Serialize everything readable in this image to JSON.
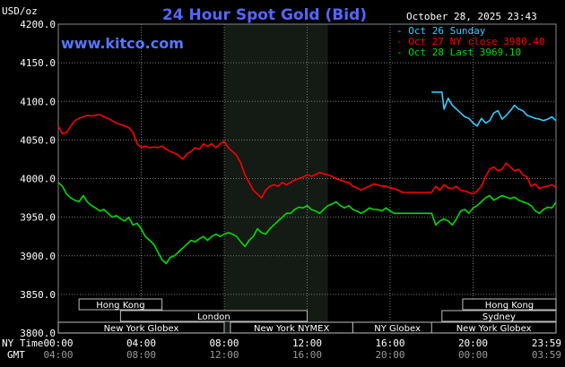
{
  "header": {
    "title": "24 Hour Spot Gold (Bid)",
    "unit": "USD/oz",
    "timestamp": "October 28, 2025 23:43",
    "site": "www.kitco.com"
  },
  "legend": [
    {
      "label": "Oct 26 Sunday",
      "color": "#33ccff"
    },
    {
      "label": "Oct 27 NY close 3980.40",
      "color": "#ff0000"
    },
    {
      "label": "Oct 28 Last 3969.10",
      "color": "#00dd00"
    }
  ],
  "axis_labels": {
    "row1_label": "NY Time",
    "row2_label": "GMT",
    "ny_ticks": [
      "00:00",
      "04:00",
      "08:00",
      "12:00",
      "16:00",
      "20:00",
      "23:59"
    ],
    "gmt_ticks": [
      "04:00",
      "08:00",
      "12:00",
      "16:00",
      "20:00",
      "00:00",
      "03:59"
    ]
  },
  "sessions": [
    {
      "label": "Hong Kong",
      "row": 0,
      "start": 1.0,
      "end": 5.0
    },
    {
      "label": "London",
      "row": 1,
      "start": 3.0,
      "end": 12.0
    },
    {
      "label": "New York Globex",
      "row": 2,
      "start": 0.0,
      "end": 8.0
    },
    {
      "label": "New York NYMEX",
      "row": 2,
      "start": 8.3,
      "end": 14.2
    },
    {
      "label": "NY Globex",
      "row": 2,
      "start": 14.2,
      "end": 18.5
    },
    {
      "label": "Hong Kong",
      "row": 0,
      "start": 19.5,
      "end": 24.0
    },
    {
      "label": "Sydney",
      "row": 1,
      "start": 18.5,
      "end": 24.0
    },
    {
      "label": "New York Globex",
      "row": 2,
      "start": 18.0,
      "end": 24.0
    }
  ],
  "chart_data": {
    "type": "line",
    "title": "24 Hour Spot Gold (Bid)",
    "ylabel": "USD/oz",
    "ylim": [
      3800,
      4200
    ],
    "yticks": [
      3800,
      3850,
      3900,
      3950,
      4000,
      4050,
      4100,
      4150,
      4200
    ],
    "ytick_labels": [
      "3800.0",
      "3850.0",
      "3900.0",
      "3950.0",
      "4000.0",
      "4050.0",
      "4100.0",
      "4150.0",
      "4200.0"
    ],
    "xlim_hours": [
      0,
      24
    ],
    "grid": true,
    "highlight_hours": [
      8,
      13
    ],
    "series": [
      {
        "name": "Oct 26 Sunday",
        "color": "#33ccff",
        "x": [
          18.0,
          18.5,
          18.6,
          18.8,
          19.0,
          19.2,
          19.4,
          19.6,
          19.8,
          20.0,
          20.2,
          20.4,
          20.6,
          20.8,
          21.0,
          21.2,
          21.4,
          21.6,
          21.8,
          22.0,
          22.2,
          22.4,
          22.6,
          22.8,
          23.0,
          23.2,
          23.4,
          23.6,
          23.8,
          23.99
        ],
        "values": [
          4112,
          4112,
          4090,
          4104,
          4095,
          4090,
          4085,
          4080,
          4078,
          4072,
          4068,
          4078,
          4072,
          4075,
          4085,
          4088,
          4077,
          4082,
          4088,
          4095,
          4090,
          4088,
          4082,
          4080,
          4078,
          4077,
          4075,
          4077,
          4080,
          4075
        ]
      },
      {
        "name": "Oct 27 NY close 3980.40",
        "color": "#ff0000",
        "x": [
          0.0,
          0.2,
          0.4,
          0.6,
          0.8,
          1.0,
          1.2,
          1.4,
          1.6,
          1.8,
          2.0,
          2.2,
          2.4,
          2.6,
          2.8,
          3.0,
          3.2,
          3.4,
          3.6,
          3.8,
          4.0,
          4.2,
          4.4,
          4.6,
          4.8,
          5.0,
          5.2,
          5.4,
          5.6,
          5.8,
          6.0,
          6.2,
          6.4,
          6.6,
          6.8,
          7.0,
          7.2,
          7.4,
          7.6,
          7.8,
          8.0,
          8.2,
          8.4,
          8.6,
          8.8,
          9.0,
          9.2,
          9.4,
          9.6,
          9.8,
          10.0,
          10.2,
          10.4,
          10.6,
          10.8,
          11.0,
          11.2,
          11.4,
          11.6,
          11.8,
          12.0,
          12.2,
          12.4,
          12.6,
          12.8,
          13.0,
          13.2,
          13.4,
          13.6,
          13.8,
          14.0,
          14.2,
          14.4,
          14.6,
          14.8,
          15.0,
          15.2,
          15.4,
          15.6,
          15.8,
          16.0,
          16.2,
          16.4,
          16.6,
          16.8,
          17.0,
          17.2,
          17.4,
          17.6,
          17.8,
          18.0,
          18.2,
          18.4,
          18.6,
          18.8,
          19.0,
          19.2,
          19.4,
          19.6,
          19.8,
          20.0,
          20.2,
          20.4,
          20.6,
          20.8,
          21.0,
          21.2,
          21.4,
          21.6,
          21.8,
          22.0,
          22.2,
          22.4,
          22.6,
          22.8,
          23.0,
          23.2,
          23.4,
          23.6,
          23.8,
          23.99
        ],
        "values": [
          4068,
          4058,
          4060,
          4068,
          4075,
          4078,
          4080,
          4082,
          4081,
          4082,
          4083,
          4080,
          4078,
          4075,
          4072,
          4070,
          4068,
          4066,
          4060,
          4045,
          4040,
          4042,
          4040,
          4041,
          4040,
          4042,
          4038,
          4035,
          4033,
          4030,
          4025,
          4032,
          4035,
          4040,
          4038,
          4045,
          4042,
          4045,
          4040,
          4045,
          4048,
          4040,
          4035,
          4030,
          4020,
          4005,
          3995,
          3985,
          3980,
          3975,
          3985,
          3990,
          3992,
          3990,
          3995,
          3992,
          3995,
          3998,
          4000,
          4002,
          4005,
          4003,
          4005,
          4008,
          4006,
          4005,
          4003,
          4000,
          3998,
          3996,
          3995,
          3990,
          3988,
          3985,
          3988,
          3990,
          3993,
          3992,
          3990,
          3990,
          3988,
          3987,
          3985,
          3982,
          3982,
          3982,
          3982,
          3982,
          3982,
          3982,
          3982,
          3990,
          3985,
          3992,
          3988,
          3987,
          3990,
          3985,
          3984,
          3982,
          3980,
          3984,
          3990,
          4002,
          4012,
          4015,
          4010,
          4012,
          4020,
          4015,
          4010,
          4012,
          4005,
          4002,
          3990,
          3993,
          3987,
          3989,
          3990,
          3992,
          3989
        ]
      },
      {
        "name": "Oct 28 Last 3969.10",
        "color": "#00dd00",
        "x": [
          0.0,
          0.2,
          0.4,
          0.6,
          0.8,
          1.0,
          1.2,
          1.4,
          1.6,
          1.8,
          2.0,
          2.2,
          2.4,
          2.6,
          2.8,
          3.0,
          3.2,
          3.4,
          3.6,
          3.8,
          4.0,
          4.2,
          4.4,
          4.6,
          4.8,
          5.0,
          5.2,
          5.4,
          5.6,
          5.8,
          6.0,
          6.2,
          6.4,
          6.6,
          6.8,
          7.0,
          7.2,
          7.4,
          7.6,
          7.8,
          8.0,
          8.2,
          8.4,
          8.6,
          8.8,
          9.0,
          9.2,
          9.4,
          9.6,
          9.8,
          10.0,
          10.2,
          10.4,
          10.6,
          10.8,
          11.0,
          11.2,
          11.4,
          11.6,
          11.8,
          12.0,
          12.2,
          12.4,
          12.6,
          12.8,
          13.0,
          13.2,
          13.4,
          13.6,
          13.8,
          14.0,
          14.2,
          14.4,
          14.6,
          14.8,
          15.0,
          15.2,
          15.4,
          15.6,
          15.8,
          16.0,
          16.2,
          16.4,
          16.6,
          16.8,
          17.0,
          17.2,
          17.4,
          17.6,
          17.8,
          18.0,
          18.2,
          18.4,
          18.6,
          18.8,
          19.0,
          19.2,
          19.4,
          19.6,
          19.8,
          20.0,
          20.2,
          20.4,
          20.6,
          20.8,
          21.0,
          21.2,
          21.4,
          21.6,
          21.8,
          22.0,
          22.2,
          22.4,
          22.6,
          22.8,
          23.0,
          23.2,
          23.4,
          23.6,
          23.8,
          23.99
        ],
        "values": [
          3995,
          3990,
          3980,
          3975,
          3972,
          3970,
          3978,
          3970,
          3965,
          3962,
          3958,
          3960,
          3955,
          3950,
          3952,
          3948,
          3945,
          3950,
          3940,
          3942,
          3935,
          3925,
          3920,
          3915,
          3905,
          3895,
          3890,
          3898,
          3900,
          3905,
          3910,
          3915,
          3920,
          3918,
          3922,
          3925,
          3920,
          3925,
          3928,
          3925,
          3928,
          3930,
          3928,
          3925,
          3918,
          3912,
          3920,
          3925,
          3935,
          3930,
          3928,
          3935,
          3940,
          3945,
          3950,
          3955,
          3955,
          3960,
          3963,
          3962,
          3965,
          3960,
          3958,
          3955,
          3960,
          3965,
          3967,
          3970,
          3965,
          3962,
          3965,
          3960,
          3958,
          3955,
          3958,
          3962,
          3960,
          3960,
          3958,
          3962,
          3958,
          3955,
          3955,
          3955,
          3955,
          3955,
          3955,
          3955,
          3955,
          3955,
          3955,
          3940,
          3945,
          3948,
          3945,
          3940,
          3948,
          3958,
          3960,
          3955,
          3962,
          3965,
          3970,
          3975,
          3978,
          3972,
          3975,
          3978,
          3976,
          3974,
          3976,
          3972,
          3970,
          3968,
          3965,
          3958,
          3955,
          3960,
          3963,
          3962,
          3969
        ]
      }
    ]
  }
}
